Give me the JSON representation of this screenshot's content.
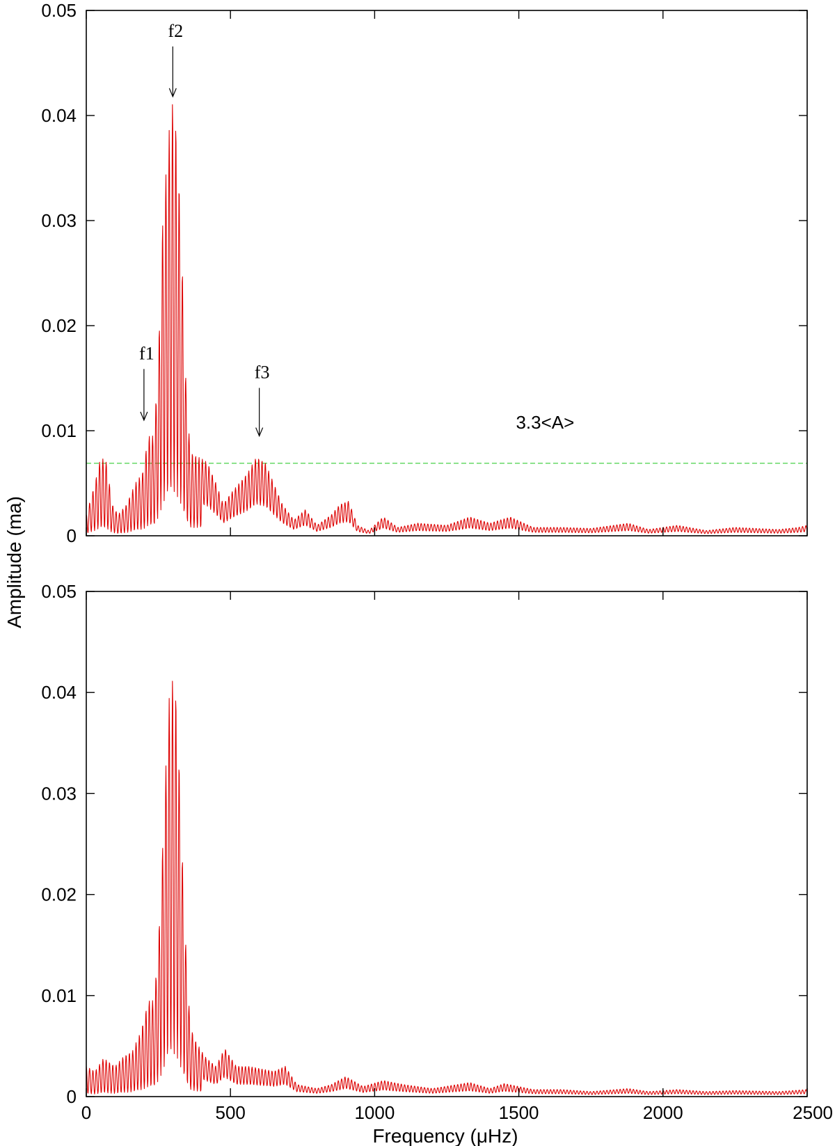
{
  "chart_data": [
    {
      "type": "line",
      "panel": "top",
      "xlim": [
        0,
        2500
      ],
      "ylim": [
        0,
        0.05
      ],
      "xticks": [
        0,
        500,
        1000,
        1500,
        2000,
        2500
      ],
      "yticks": [
        0,
        0.01,
        0.02,
        0.03,
        0.04,
        0.05
      ],
      "ytick_labels": [
        "0",
        "0.01",
        "0.02",
        "0.03",
        "0.04",
        "0.05"
      ],
      "xtick_labels_shown": false,
      "line_color": "#dd0000",
      "threshold": {
        "value": 0.0069,
        "color": "#33cc33",
        "style": "dashed",
        "label": "3.3<A>"
      },
      "annotations": [
        {
          "text": "f1",
          "x": 200,
          "y_tip": 0.011,
          "y_text": 0.0168
        },
        {
          "text": "f2",
          "x": 300,
          "y_tip": 0.0418,
          "y_text": 0.0475
        },
        {
          "text": "f3",
          "x": 600,
          "y_tip": 0.0095,
          "y_text": 0.015
        }
      ],
      "envelope": [
        [
          0,
          0.002
        ],
        [
          30,
          0.005
        ],
        [
          50,
          0.0075
        ],
        [
          70,
          0.007
        ],
        [
          90,
          0.003
        ],
        [
          110,
          0.002
        ],
        [
          140,
          0.003
        ],
        [
          170,
          0.005
        ],
        [
          195,
          0.006
        ],
        [
          215,
          0.0095
        ],
        [
          235,
          0.0095
        ],
        [
          250,
          0.017
        ],
        [
          265,
          0.03
        ],
        [
          285,
          0.038
        ],
        [
          300,
          0.0415
        ],
        [
          315,
          0.038
        ],
        [
          330,
          0.028
        ],
        [
          345,
          0.015
        ],
        [
          360,
          0.008
        ],
        [
          390,
          0.0075
        ],
        [
          420,
          0.007
        ],
        [
          450,
          0.005
        ],
        [
          475,
          0.003
        ],
        [
          500,
          0.004
        ],
        [
          530,
          0.005
        ],
        [
          560,
          0.006
        ],
        [
          590,
          0.0075
        ],
        [
          620,
          0.007
        ],
        [
          650,
          0.005
        ],
        [
          680,
          0.003
        ],
        [
          720,
          0.0015
        ],
        [
          760,
          0.0025
        ],
        [
          800,
          0.001
        ],
        [
          850,
          0.002
        ],
        [
          880,
          0.003
        ],
        [
          910,
          0.0033
        ],
        [
          940,
          0.001
        ],
        [
          980,
          0.0005
        ],
        [
          1030,
          0.0018
        ],
        [
          1080,
          0.0008
        ],
        [
          1150,
          0.0012
        ],
        [
          1250,
          0.001
        ],
        [
          1330,
          0.0018
        ],
        [
          1400,
          0.0012
        ],
        [
          1470,
          0.0018
        ],
        [
          1550,
          0.0008
        ],
        [
          1650,
          0.0008
        ],
        [
          1750,
          0.0007
        ],
        [
          1880,
          0.0012
        ],
        [
          1950,
          0.0006
        ],
        [
          2050,
          0.001
        ],
        [
          2150,
          0.0005
        ],
        [
          2250,
          0.0008
        ],
        [
          2400,
          0.0006
        ],
        [
          2470,
          0.0008
        ],
        [
          2500,
          0.001
        ]
      ]
    },
    {
      "type": "line",
      "panel": "bottom",
      "xlim": [
        0,
        2500
      ],
      "ylim": [
        0,
        0.05
      ],
      "xticks": [
        0,
        500,
        1000,
        1500,
        2000,
        2500
      ],
      "yticks": [
        0,
        0.01,
        0.02,
        0.03,
        0.04,
        0.05
      ],
      "ytick_labels": [
        "0",
        "0.01",
        "0.02",
        "0.03",
        "0.04",
        "0.05"
      ],
      "xtick_labels": [
        "0",
        "500",
        "1000",
        "1500",
        "2000",
        "2500"
      ],
      "line_color": "#dd0000",
      "envelope": [
        [
          0,
          0.003
        ],
        [
          30,
          0.0025
        ],
        [
          60,
          0.0038
        ],
        [
          100,
          0.003
        ],
        [
          130,
          0.004
        ],
        [
          160,
          0.0045
        ],
        [
          190,
          0.0065
        ],
        [
          215,
          0.0095
        ],
        [
          235,
          0.0095
        ],
        [
          250,
          0.015
        ],
        [
          265,
          0.025
        ],
        [
          285,
          0.039
        ],
        [
          300,
          0.0415
        ],
        [
          315,
          0.039
        ],
        [
          330,
          0.026
        ],
        [
          345,
          0.015
        ],
        [
          360,
          0.007
        ],
        [
          380,
          0.0055
        ],
        [
          410,
          0.004
        ],
        [
          450,
          0.003
        ],
        [
          480,
          0.0048
        ],
        [
          520,
          0.003
        ],
        [
          560,
          0.003
        ],
        [
          600,
          0.0028
        ],
        [
          650,
          0.0025
        ],
        [
          690,
          0.003
        ],
        [
          730,
          0.0012
        ],
        [
          800,
          0.0008
        ],
        [
          850,
          0.0012
        ],
        [
          900,
          0.002
        ],
        [
          960,
          0.001
        ],
        [
          1030,
          0.0016
        ],
        [
          1100,
          0.0012
        ],
        [
          1200,
          0.0008
        ],
        [
          1330,
          0.0014
        ],
        [
          1400,
          0.0008
        ],
        [
          1450,
          0.0013
        ],
        [
          1550,
          0.0007
        ],
        [
          1650,
          0.0007
        ],
        [
          1750,
          0.0005
        ],
        [
          1880,
          0.0008
        ],
        [
          1950,
          0.0005
        ],
        [
          2050,
          0.0007
        ],
        [
          2150,
          0.0005
        ],
        [
          2250,
          0.0006
        ],
        [
          2400,
          0.0005
        ],
        [
          2500,
          0.0007
        ]
      ]
    }
  ],
  "labels": {
    "ylabel": "Amplitude (ma)",
    "xlabel": "Frequency (μHz)"
  }
}
